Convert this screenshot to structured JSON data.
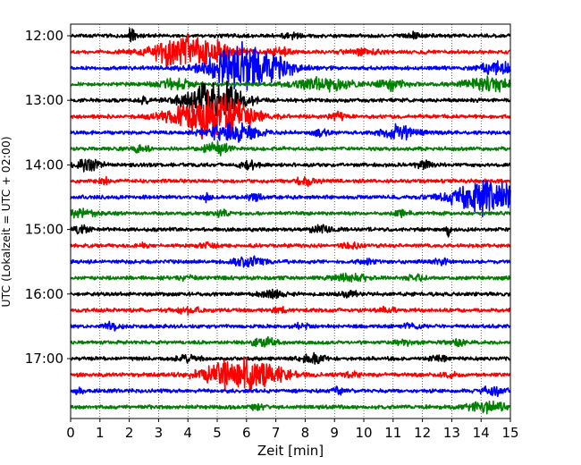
{
  "chart_data": {
    "type": "line",
    "title": "",
    "xlabel": "Zeit  [min]",
    "ylabel": "UTC (Lokalzeit = UTC + 02:00)",
    "xlim": [
      0,
      15
    ],
    "x_ticks": [
      0,
      1,
      2,
      3,
      4,
      5,
      6,
      7,
      8,
      9,
      10,
      11,
      12,
      13,
      14,
      15
    ],
    "y_tick_labels": [
      "12:00",
      "13:00",
      "14:00",
      "15:00",
      "16:00",
      "17:00"
    ],
    "grid": "vertical dotted",
    "trace_interval_minutes": 15,
    "first_trace_time": "12:00",
    "trace_colors": [
      "#000000",
      "#ff0000",
      "#0000ff",
      "#008000"
    ],
    "traces": [
      {
        "time": "12:00",
        "events": [
          {
            "t": 2.1,
            "amp": 0.9,
            "dur": 0.08
          },
          {
            "t": 7.5,
            "amp": 0.25,
            "dur": 0.2
          },
          {
            "t": 11.7,
            "amp": 0.3,
            "dur": 0.15
          }
        ]
      },
      {
        "time": "12:15",
        "events": [
          {
            "t": 4.1,
            "amp": 1.6,
            "dur": 0.9
          },
          {
            "t": 7.2,
            "amp": 0.3,
            "dur": 0.3
          },
          {
            "t": 10.0,
            "amp": 0.3,
            "dur": 0.4
          }
        ]
      },
      {
        "time": "12:30",
        "events": [
          {
            "t": 6.0,
            "amp": 2.2,
            "dur": 0.9
          },
          {
            "t": 14.5,
            "amp": 0.6,
            "dur": 0.4
          }
        ]
      },
      {
        "time": "12:45",
        "events": [
          {
            "t": 3.6,
            "amp": 0.5,
            "dur": 0.4
          },
          {
            "t": 8.5,
            "amp": 0.6,
            "dur": 0.8
          },
          {
            "t": 11.0,
            "amp": 0.5,
            "dur": 0.3
          },
          {
            "t": 14.3,
            "amp": 0.6,
            "dur": 0.6
          }
        ]
      },
      {
        "time": "13:00",
        "events": [
          {
            "t": 2.5,
            "amp": 0.3,
            "dur": 0.1
          },
          {
            "t": 4.9,
            "amp": 1.8,
            "dur": 0.7
          }
        ]
      },
      {
        "time": "13:15",
        "events": [
          {
            "t": 4.8,
            "amp": 2.2,
            "dur": 0.9
          },
          {
            "t": 9.1,
            "amp": 0.3,
            "dur": 0.2
          }
        ]
      },
      {
        "time": "13:30",
        "events": [
          {
            "t": 5.5,
            "amp": 1.0,
            "dur": 0.6
          },
          {
            "t": 11.2,
            "amp": 0.6,
            "dur": 0.4
          },
          {
            "t": 8.5,
            "amp": 0.3,
            "dur": 0.2
          }
        ]
      },
      {
        "time": "13:45",
        "events": [
          {
            "t": 2.4,
            "amp": 0.3,
            "dur": 0.2
          },
          {
            "t": 5.0,
            "amp": 0.6,
            "dur": 0.3
          }
        ]
      },
      {
        "time": "14:00",
        "events": [
          {
            "t": 0.6,
            "amp": 0.6,
            "dur": 0.3
          },
          {
            "t": 6.1,
            "amp": 0.3,
            "dur": 0.3
          },
          {
            "t": 12.1,
            "amp": 0.3,
            "dur": 0.2
          }
        ]
      },
      {
        "time": "14:15",
        "events": [
          {
            "t": 1.2,
            "amp": 0.25,
            "dur": 0.15
          },
          {
            "t": 8.0,
            "amp": 0.3,
            "dur": 0.3
          }
        ]
      },
      {
        "time": "14:30",
        "events": [
          {
            "t": 4.6,
            "amp": 0.5,
            "dur": 0.1
          },
          {
            "t": 6.3,
            "amp": 0.3,
            "dur": 0.2
          },
          {
            "t": 14.2,
            "amp": 1.6,
            "dur": 0.8
          }
        ]
      },
      {
        "time": "14:45",
        "events": [
          {
            "t": 0.4,
            "amp": 0.4,
            "dur": 0.3
          },
          {
            "t": 5.2,
            "amp": 0.3,
            "dur": 0.2
          },
          {
            "t": 11.3,
            "amp": 0.3,
            "dur": 0.2
          }
        ]
      },
      {
        "time": "15:00",
        "events": [
          {
            "t": 0.4,
            "amp": 0.3,
            "dur": 0.2
          },
          {
            "t": 8.6,
            "amp": 0.3,
            "dur": 0.3
          },
          {
            "t": 12.9,
            "amp": 0.7,
            "dur": 0.05
          }
        ]
      },
      {
        "time": "15:15",
        "events": [
          {
            "t": 2.5,
            "amp": 0.2,
            "dur": 0.1
          },
          {
            "t": 9.6,
            "amp": 0.3,
            "dur": 0.2
          },
          {
            "t": 4.7,
            "amp": 0.3,
            "dur": 0.2
          }
        ]
      },
      {
        "time": "15:30",
        "events": [
          {
            "t": 6.1,
            "amp": 0.4,
            "dur": 0.4
          },
          {
            "t": 10.1,
            "amp": 0.25,
            "dur": 0.2
          },
          {
            "t": 12.6,
            "amp": 0.25,
            "dur": 0.2
          }
        ]
      },
      {
        "time": "15:45",
        "events": [
          {
            "t": 4.0,
            "amp": 0.2,
            "dur": 0.2
          },
          {
            "t": 9.6,
            "amp": 0.3,
            "dur": 0.4
          },
          {
            "t": 11.8,
            "amp": 0.25,
            "dur": 0.2
          }
        ]
      },
      {
        "time": "16:00",
        "events": [
          {
            "t": 6.9,
            "amp": 0.35,
            "dur": 0.3
          },
          {
            "t": 9.5,
            "amp": 0.3,
            "dur": 0.2
          }
        ]
      },
      {
        "time": "16:15",
        "events": [
          {
            "t": 4.0,
            "amp": 0.3,
            "dur": 0.3
          },
          {
            "t": 7.1,
            "amp": 0.3,
            "dur": 0.15
          },
          {
            "t": 10.8,
            "amp": 0.2,
            "dur": 0.2
          }
        ]
      },
      {
        "time": "16:30",
        "events": [
          {
            "t": 1.4,
            "amp": 0.3,
            "dur": 0.2
          },
          {
            "t": 7.9,
            "amp": 0.25,
            "dur": 0.2
          },
          {
            "t": 11.6,
            "amp": 0.2,
            "dur": 0.2
          }
        ]
      },
      {
        "time": "16:45",
        "events": [
          {
            "t": 6.6,
            "amp": 0.4,
            "dur": 0.3
          },
          {
            "t": 11.4,
            "amp": 0.25,
            "dur": 0.2
          },
          {
            "t": 13.2,
            "amp": 0.25,
            "dur": 0.2
          }
        ]
      },
      {
        "time": "17:00",
        "events": [
          {
            "t": 3.9,
            "amp": 0.3,
            "dur": 0.3
          },
          {
            "t": 8.3,
            "amp": 0.4,
            "dur": 0.3
          },
          {
            "t": 12.5,
            "amp": 0.25,
            "dur": 0.2
          }
        ]
      },
      {
        "time": "17:15",
        "events": [
          {
            "t": 5.9,
            "amp": 1.6,
            "dur": 0.9
          },
          {
            "t": 9.6,
            "amp": 0.3,
            "dur": 0.2
          },
          {
            "t": 12.9,
            "amp": 0.2,
            "dur": 0.2
          }
        ]
      },
      {
        "time": "17:30",
        "events": [
          {
            "t": 0.3,
            "amp": 0.3,
            "dur": 0.1
          },
          {
            "t": 9.1,
            "amp": 0.4,
            "dur": 0.1
          },
          {
            "t": 14.4,
            "amp": 0.4,
            "dur": 0.3
          }
        ]
      },
      {
        "time": "17:45",
        "events": [
          {
            "t": 14.2,
            "amp": 0.5,
            "dur": 0.5
          },
          {
            "t": 6.3,
            "amp": 0.2,
            "dur": 0.2
          }
        ]
      }
    ]
  }
}
